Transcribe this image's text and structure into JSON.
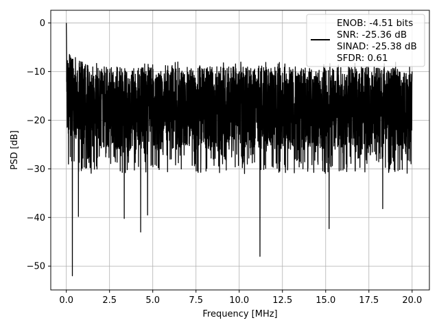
{
  "chart_data": {
    "type": "line",
    "title": "",
    "xlabel": "Frequency [MHz]",
    "ylabel": "PSD [dB]",
    "xlim": [
      -0.9,
      21.0
    ],
    "ylim": [
      -54.9,
      2.6
    ],
    "xticks": [
      0.0,
      2.5,
      5.0,
      7.5,
      10.0,
      12.5,
      15.0,
      17.5,
      20.0
    ],
    "xtick_labels": [
      "0.0",
      "2.5",
      "5.0",
      "7.5",
      "10.0",
      "12.5",
      "15.0",
      "17.5",
      "20.0"
    ],
    "yticks": [
      0,
      -10,
      -20,
      -30,
      -40,
      -50
    ],
    "ytick_labels": [
      "0",
      "−10",
      "−20",
      "−30",
      "−40",
      "−50"
    ],
    "grid": true,
    "legend_position": "top-right",
    "legend_entries": [
      "ENOB: -4.51 bits",
      "SNR: -25.36 dB",
      "SINAD: -25.38 dB",
      "SFDR: 0.61"
    ],
    "series": [
      {
        "color": "#000000",
        "x_range": [
          0.0,
          20.0
        ],
        "envelope_note": "dense noise spectrum between about -30 and -8 dB",
        "peak": {
          "x": 0.0,
          "y": 0.0
        },
        "dips": [
          {
            "x": 0.35,
            "y": -52.0
          },
          {
            "x": 0.7,
            "y": -39.8
          },
          {
            "x": 3.35,
            "y": -40.2
          },
          {
            "x": 4.3,
            "y": -43.0
          },
          {
            "x": 4.7,
            "y": -39.5
          },
          {
            "x": 11.2,
            "y": -48.0
          },
          {
            "x": 15.2,
            "y": -42.3
          },
          {
            "x": 18.3,
            "y": -38.2
          }
        ]
      }
    ],
    "colors": {
      "line": "#000000",
      "grid": "#b0b0b0",
      "axes": "#000000"
    }
  }
}
